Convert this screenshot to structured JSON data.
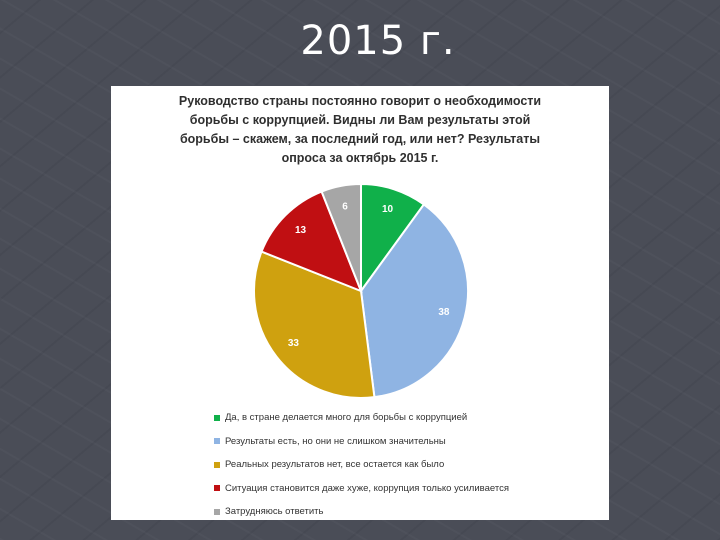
{
  "slide": {
    "title": "2015 г."
  },
  "chart_data": {
    "type": "pie",
    "title_lines": [
      "Руководство страны постоянно говорит о необходимости",
      "борьбы с коррупцией. Видны ли Вам результаты этой",
      "борьбы – скажем, за последний год, или нет? Результаты",
      "опроса за октябрь 2015 г."
    ],
    "slices": [
      {
        "label": "Да, в стране делается много для борьбы с коррупцией",
        "value": 10,
        "color": "#10b04a"
      },
      {
        "label": "Результаты есть, но они не слишком значительны",
        "value": 38,
        "color": "#8fb4e3"
      },
      {
        "label": "Реальных результатов нет, все остается как было",
        "value": 33,
        "color": "#cfa10f"
      },
      {
        "label": "Ситуация становится даже хуже, коррупция только усиливается",
        "value": 13,
        "color": "#c00f12"
      },
      {
        "label": "Затрудняюсь ответить",
        "value": 6,
        "color": "#a6a6a6"
      }
    ],
    "legend_position": "bottom"
  }
}
